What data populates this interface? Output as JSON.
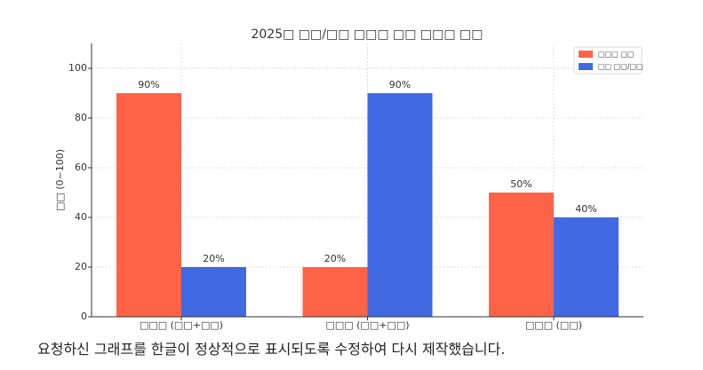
{
  "chart_data": {
    "type": "bar",
    "title": "2025□ □□/□□ □□□ □□ □□□ □□",
    "y_label": "□□ (0~100)",
    "categories": [
      "□□□ (□□+□□)",
      "□□□ (□□+□□)",
      "□□□ (□□)"
    ],
    "series": [
      {
        "name": "□□□ □□",
        "color": "#ff6347",
        "values": [
          90,
          20,
          50
        ],
        "value_labels": [
          "90%",
          "20%",
          "50%"
        ]
      },
      {
        "name": "□□ □□/□□",
        "color": "#4169e1",
        "values": [
          20,
          90,
          40
        ],
        "value_labels": [
          "20%",
          "90%",
          "40%"
        ]
      }
    ],
    "ylim": [
      0,
      110
    ],
    "yticks": [
      0,
      20,
      40,
      60,
      80,
      100
    ],
    "grid": true,
    "legend": "upper-right"
  },
  "message": "요청하신 그래프를 한글이 정상적으로 표시되도록 수정하여 다시 제작했습니다."
}
